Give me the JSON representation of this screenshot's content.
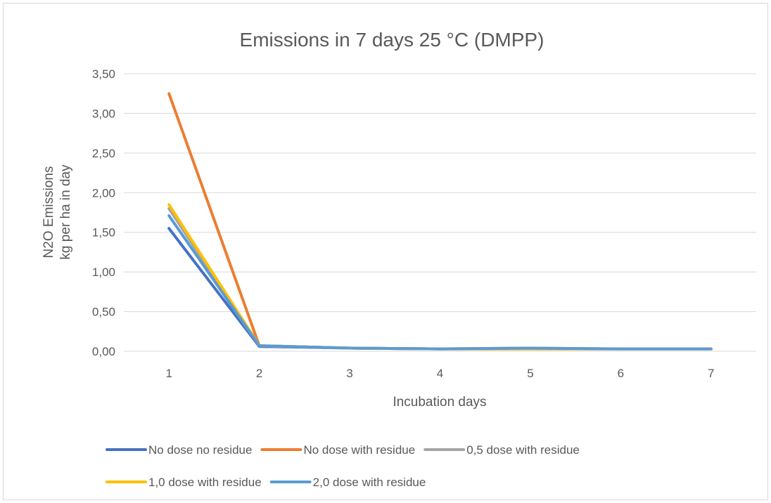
{
  "chart_data": {
    "type": "line",
    "title": "Emissions in 7 days 25 °C (DMPP)",
    "xlabel": "Incubation days",
    "ylabel_lines": [
      "N2O Emissions",
      "kg per ha in day"
    ],
    "categories": [
      "1",
      "2",
      "3",
      "4",
      "5",
      "6",
      "7"
    ],
    "ylim": [
      0,
      3.5
    ],
    "yticks": [
      0,
      0.5,
      1.0,
      1.5,
      2.0,
      2.5,
      3.0,
      3.5
    ],
    "ytick_labels": [
      "0,00",
      "0,50",
      "1,00",
      "1,50",
      "2,00",
      "2,50",
      "3,00",
      "3,50"
    ],
    "grid": true,
    "legend_position": "bottom",
    "series": [
      {
        "name": "No dose no residue",
        "color": "#4472c4",
        "values": [
          1.55,
          0.06,
          0.04,
          0.03,
          0.03,
          0.03,
          0.03
        ]
      },
      {
        "name": "No dose with residue",
        "color": "#ed7d31",
        "values": [
          3.25,
          0.07,
          0.04,
          0.03,
          0.04,
          0.03,
          0.03
        ]
      },
      {
        "name": "0,5 dose with residue",
        "color": "#a5a5a5",
        "values": [
          1.8,
          0.07,
          0.04,
          0.03,
          0.03,
          0.03,
          0.03
        ]
      },
      {
        "name": "1,0 dose with residue",
        "color": "#ffc000",
        "values": [
          1.85,
          0.07,
          0.04,
          0.03,
          0.03,
          0.03,
          0.03
        ]
      },
      {
        "name": "2,0 dose with residue",
        "color": "#5b9bd5",
        "values": [
          1.71,
          0.07,
          0.04,
          0.03,
          0.04,
          0.03,
          0.03
        ]
      }
    ]
  }
}
